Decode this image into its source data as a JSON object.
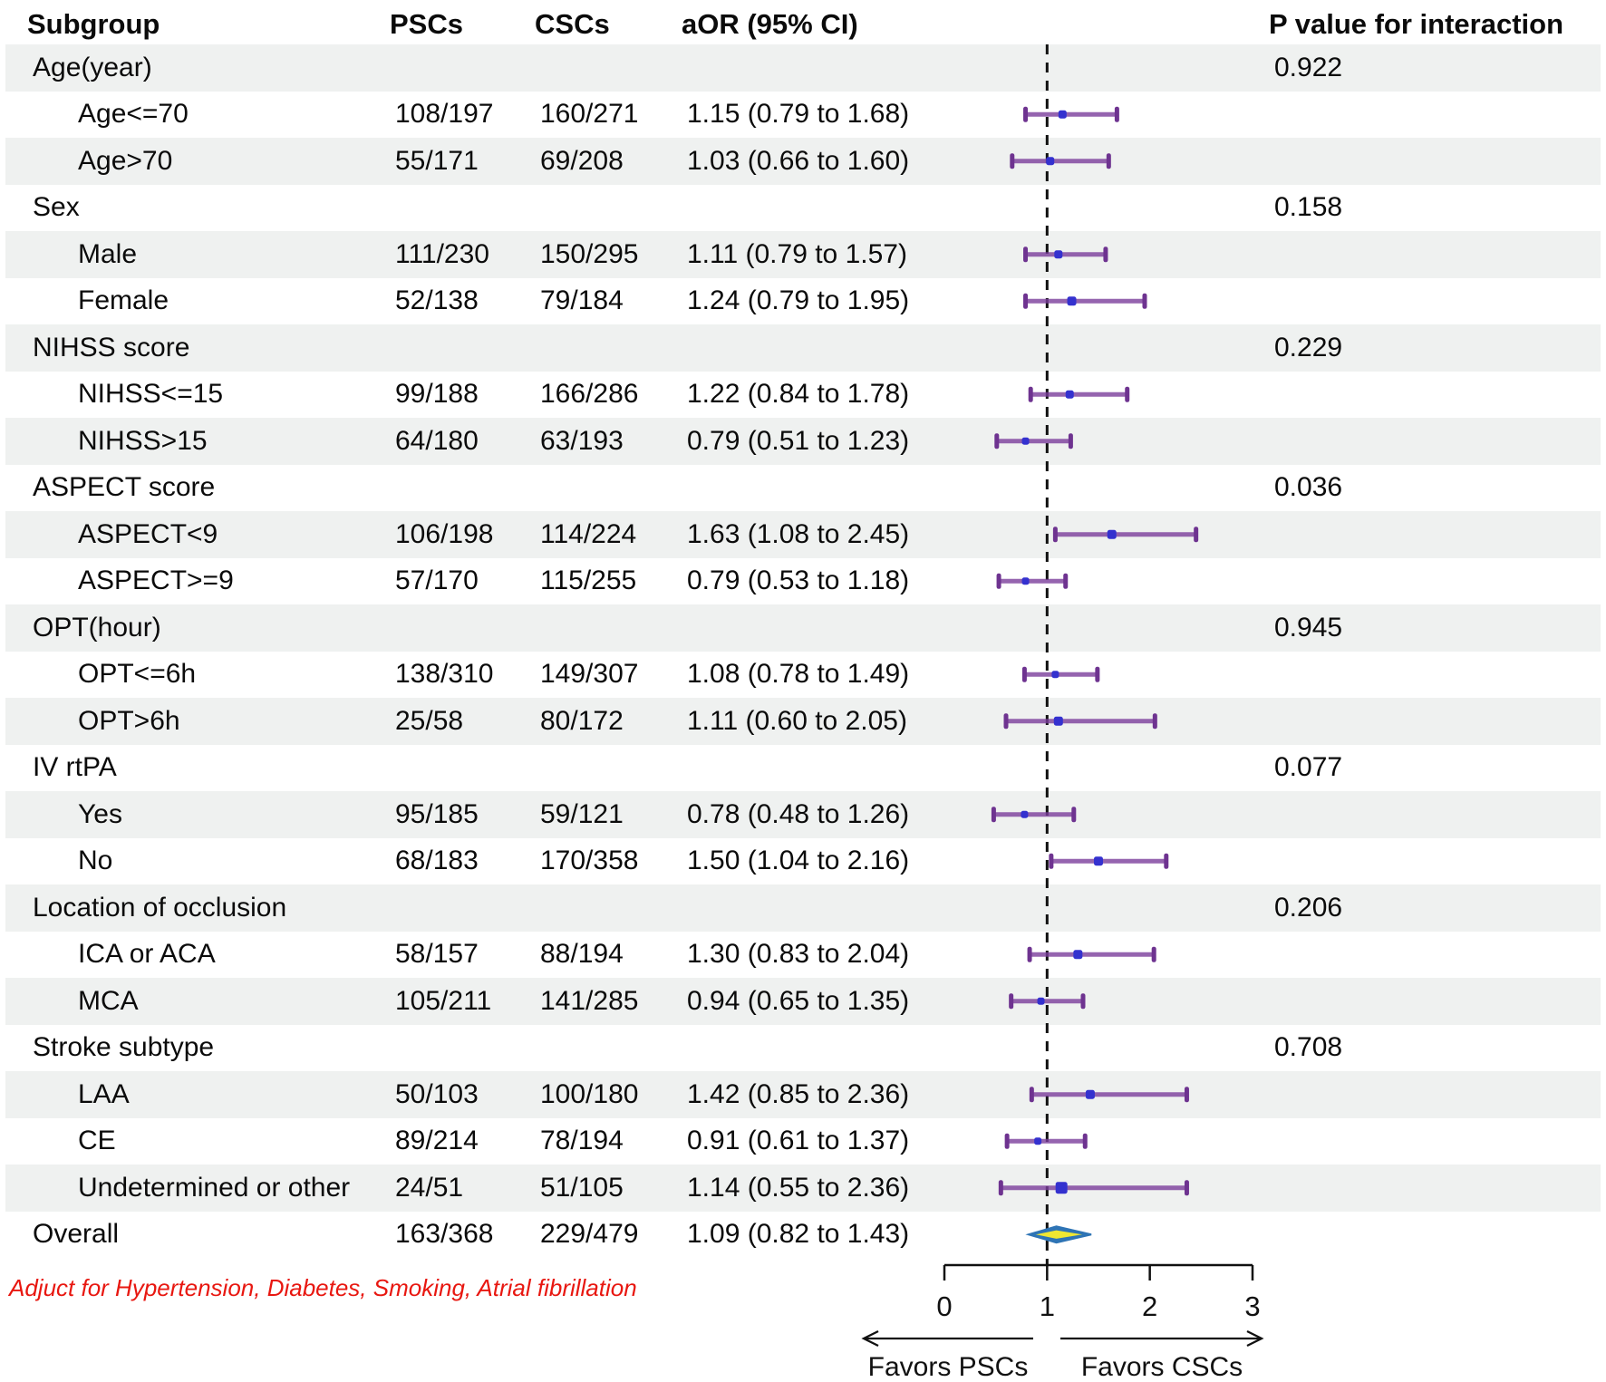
{
  "header": {
    "subgroup": "Subgroup",
    "pscs": "PSCs",
    "cscs": "CSCs",
    "aor": "aOR (95% CI)",
    "p_interaction": "P value for interaction"
  },
  "footnote": "Adjuct for Hypertension, Diabetes, Smoking, Atrial fibrillation",
  "colors": {
    "stripe": "#eff1f0",
    "ci_bar": "#7a3d9b",
    "ci_cap": "#6e3390",
    "marker_blue": "#3431cf",
    "diamond_border": "#2e74b5",
    "diamond_fill": "#2e74b5",
    "diamond_inner": "#f0e732",
    "footnote_red": "#e81710",
    "axis_black": "#111111"
  },
  "chart_data": {
    "type": "forest",
    "title": "",
    "xlabel_left": "Favors PSCs",
    "xlabel_right": "Favors CSCs",
    "axis": {
      "ticks": [
        0,
        1,
        2,
        3
      ],
      "range": [
        0,
        3
      ],
      "reference_line": 1
    },
    "rows": [
      {
        "label": "Age(year)",
        "level": "group",
        "p": "0.922"
      },
      {
        "label": "Age<=70",
        "level": "item",
        "psc": "108/197",
        "csc": "160/271",
        "aor": "1.15 (0.79 to 1.68)",
        "or": 1.15,
        "lo": 0.79,
        "hi": 1.68,
        "marker": 9
      },
      {
        "label": "Age>70",
        "level": "item",
        "psc": "55/171",
        "csc": "69/208",
        "aor": "1.03 (0.66 to 1.60)",
        "or": 1.03,
        "lo": 0.66,
        "hi": 1.6,
        "marker": 9
      },
      {
        "label": "Sex",
        "level": "group",
        "p": "0.158"
      },
      {
        "label": "Male",
        "level": "item",
        "psc": "111/230",
        "csc": "150/295",
        "aor": "1.11 (0.79 to 1.57)",
        "or": 1.11,
        "lo": 0.79,
        "hi": 1.57,
        "marker": 9
      },
      {
        "label": "Female",
        "level": "item",
        "psc": "52/138",
        "csc": "79/184",
        "aor": "1.24 (0.79 to 1.95)",
        "or": 1.24,
        "lo": 0.79,
        "hi": 1.95,
        "marker": 10
      },
      {
        "label": "NIHSS score",
        "level": "group",
        "p": "0.229"
      },
      {
        "label": "NIHSS<=15",
        "level": "item",
        "psc": "99/188",
        "csc": "166/286",
        "aor": "1.22 (0.84 to 1.78)",
        "or": 1.22,
        "lo": 0.84,
        "hi": 1.78,
        "marker": 9
      },
      {
        "label": "NIHSS>15",
        "level": "item",
        "psc": "64/180",
        "csc": "63/193",
        "aor": "0.79 (0.51 to 1.23)",
        "or": 0.79,
        "lo": 0.51,
        "hi": 1.23,
        "marker": 8
      },
      {
        "label": "ASPECT score",
        "level": "group",
        "p": "0.036"
      },
      {
        "label": "ASPECT<9",
        "level": "item",
        "psc": "106/198",
        "csc": "114/224",
        "aor": "1.63 (1.08 to 2.45)",
        "or": 1.63,
        "lo": 1.08,
        "hi": 2.45,
        "marker": 10
      },
      {
        "label": "ASPECT>=9",
        "level": "item",
        "psc": "57/170",
        "csc": "115/255",
        "aor": "0.79 (0.53 to 1.18)",
        "or": 0.79,
        "lo": 0.53,
        "hi": 1.18,
        "marker": 8
      },
      {
        "label": "OPT(hour)",
        "level": "group",
        "p": "0.945"
      },
      {
        "label": "OPT<=6h",
        "level": "item",
        "psc": "138/310",
        "csc": "149/307",
        "aor": "1.08 (0.78 to 1.49)",
        "or": 1.08,
        "lo": 0.78,
        "hi": 1.49,
        "marker": 8
      },
      {
        "label": "OPT>6h",
        "level": "item",
        "psc": "25/58",
        "csc": "80/172",
        "aor": "1.11 (0.60 to 2.05)",
        "or": 1.11,
        "lo": 0.6,
        "hi": 2.05,
        "marker": 10
      },
      {
        "label": "IV rtPA",
        "level": "group",
        "p": "0.077"
      },
      {
        "label": "Yes",
        "level": "item",
        "psc": "95/185",
        "csc": "59/121",
        "aor": "0.78 (0.48 to 1.26)",
        "or": 0.78,
        "lo": 0.48,
        "hi": 1.26,
        "marker": 8
      },
      {
        "label": "No",
        "level": "item",
        "psc": "68/183",
        "csc": "170/358",
        "aor": "1.50 (1.04 to 2.16)",
        "or": 1.5,
        "lo": 1.04,
        "hi": 2.16,
        "marker": 10
      },
      {
        "label": "Location of occlusion",
        "level": "group",
        "p": "0.206"
      },
      {
        "label": "ICA or ACA",
        "level": "item",
        "psc": "58/157",
        "csc": "88/194",
        "aor": "1.30 (0.83 to 2.04)",
        "or": 1.3,
        "lo": 0.83,
        "hi": 2.04,
        "marker": 10
      },
      {
        "label": "MCA",
        "level": "item",
        "psc": "105/211",
        "csc": "141/285",
        "aor": "0.94 (0.65 to 1.35)",
        "or": 0.94,
        "lo": 0.65,
        "hi": 1.35,
        "marker": 8
      },
      {
        "label": "Stroke subtype",
        "level": "group",
        "p": "0.708"
      },
      {
        "label": "LAA",
        "level": "item",
        "psc": "50/103",
        "csc": "100/180",
        "aor": "1.42 (0.85 to 2.36)",
        "or": 1.42,
        "lo": 0.85,
        "hi": 2.36,
        "marker": 10
      },
      {
        "label": "CE",
        "level": "item",
        "psc": "89/214",
        "csc": "78/194",
        "aor": "0.91 (0.61 to 1.37)",
        "or": 0.91,
        "lo": 0.61,
        "hi": 1.37,
        "marker": 8
      },
      {
        "label": "Undetermined or other",
        "level": "item",
        "psc": "24/51",
        "csc": "51/105",
        "aor": "1.14 (0.55 to 2.36)",
        "or": 1.14,
        "lo": 0.55,
        "hi": 2.36,
        "marker": 13
      },
      {
        "label": "Overall",
        "level": "overall",
        "psc": "163/368",
        "csc": "229/479",
        "aor": "1.09 (0.82 to 1.43)",
        "or": 1.09,
        "lo": 0.82,
        "hi": 1.43
      }
    ]
  }
}
